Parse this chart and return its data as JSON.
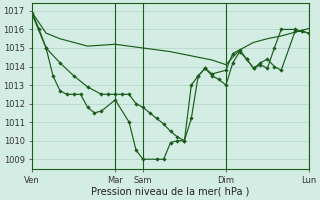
{
  "xlabel": "Pression niveau de la mer( hPa )",
  "bg_color": "#d4ede4",
  "line_color": "#1a5c1a",
  "grid_color": "#b8d8cc",
  "ylim": [
    1008.5,
    1017.4
  ],
  "yticks": [
    1009,
    1010,
    1011,
    1012,
    1013,
    1014,
    1015,
    1016,
    1017
  ],
  "xtick_labels": [
    "Ven",
    "Mar",
    "Sam",
    "Dim",
    "Lun"
  ],
  "xtick_positions": [
    0,
    72,
    96,
    168,
    240
  ],
  "vlines": [
    72,
    96,
    168,
    240
  ],
  "line1_x": [
    0,
    12,
    24,
    36,
    48,
    60,
    72,
    84,
    96,
    108,
    120,
    132,
    144,
    156,
    168,
    180,
    192,
    204,
    216,
    228,
    240
  ],
  "line1_y": [
    1016.9,
    1015.8,
    1015.5,
    1015.3,
    1015.1,
    1015.15,
    1015.2,
    1015.1,
    1015.0,
    1014.9,
    1014.8,
    1014.65,
    1014.5,
    1014.35,
    1014.1,
    1014.9,
    1015.3,
    1015.5,
    1015.65,
    1015.85,
    1016.05
  ],
  "line2_x": [
    0,
    12,
    24,
    36,
    48,
    60,
    66,
    72,
    78,
    84,
    90,
    96,
    102,
    108,
    114,
    120,
    126,
    132,
    138,
    144,
    150,
    156,
    162,
    168,
    174,
    180,
    186,
    192,
    198,
    204,
    210,
    216,
    228,
    234,
    240
  ],
  "line2_y": [
    1016.8,
    1015.0,
    1014.2,
    1013.5,
    1012.9,
    1012.5,
    1012.5,
    1012.5,
    1012.5,
    1012.5,
    1012.0,
    1011.8,
    1011.5,
    1011.2,
    1010.9,
    1010.5,
    1010.2,
    1010.0,
    1013.0,
    1013.5,
    1013.9,
    1013.5,
    1013.3,
    1013.0,
    1014.2,
    1014.8,
    1014.4,
    1013.9,
    1014.2,
    1014.4,
    1014.0,
    1013.8,
    1015.9,
    1015.9,
    1015.8
  ],
  "line3_x": [
    0,
    6,
    12,
    18,
    24,
    30,
    36,
    42,
    48,
    54,
    60,
    72,
    84,
    90,
    96,
    108,
    114,
    120,
    126,
    132,
    138,
    144,
    150,
    156,
    168,
    174,
    180,
    186,
    192,
    198,
    204,
    210,
    216,
    228,
    234,
    240
  ],
  "line3_y": [
    1016.9,
    1016.0,
    1015.0,
    1013.5,
    1012.7,
    1012.5,
    1012.5,
    1012.5,
    1011.8,
    1011.5,
    1011.6,
    1012.2,
    1011.0,
    1009.5,
    1009.0,
    1009.0,
    1009.0,
    1009.9,
    1010.0,
    1010.0,
    1011.2,
    1013.5,
    1013.9,
    1013.6,
    1013.8,
    1014.7,
    1014.9,
    1014.4,
    1013.9,
    1014.1,
    1013.9,
    1015.0,
    1016.0,
    1016.0,
    1015.9,
    1015.8
  ]
}
